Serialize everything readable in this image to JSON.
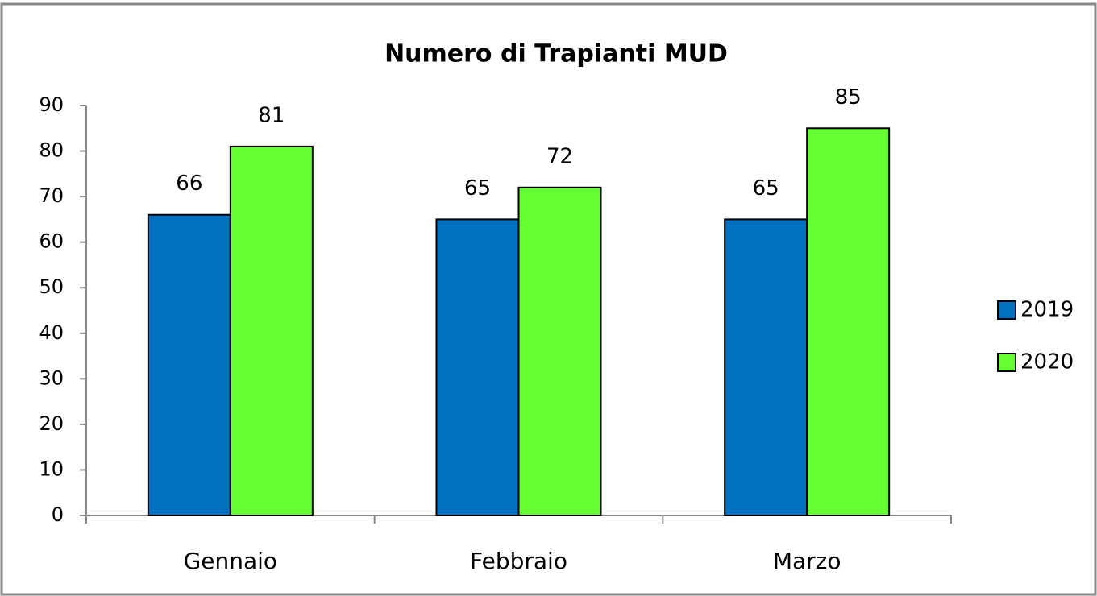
{
  "chart_data": {
    "type": "bar",
    "title": "Numero di Trapianti MUD",
    "categories": [
      "Gennaio",
      "Febbraio",
      "Marzo"
    ],
    "series": [
      {
        "name": "2019",
        "color": "#0070c0",
        "values": [
          66,
          65,
          65
        ]
      },
      {
        "name": "2020",
        "color": "#66ff33",
        "values": [
          81,
          72,
          85
        ]
      }
    ],
    "ylim": [
      0,
      90
    ],
    "yticks": [
      0,
      10,
      20,
      30,
      40,
      50,
      60,
      70,
      80,
      90
    ],
    "grid": false,
    "legend": "right"
  }
}
